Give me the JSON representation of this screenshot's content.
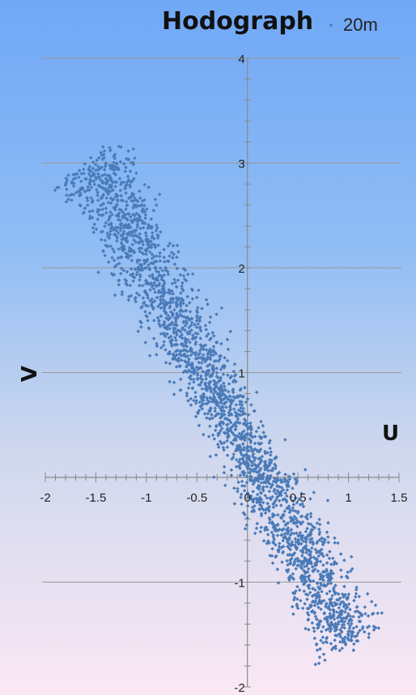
{
  "chart_data": {
    "type": "scatter",
    "title": "Hodograph",
    "xlabel": "U",
    "ylabel": "V",
    "xlim": [
      -2,
      1.5
    ],
    "ylim": [
      -2,
      4
    ],
    "x_ticks": [
      -2,
      -1.5,
      -1,
      -0.5,
      0,
      0.5,
      1,
      1.5
    ],
    "x_tick_labels": [
      "-2",
      "-1.5",
      "-1",
      "-0.5",
      "0",
      "0.5",
      "1",
      "1.5"
    ],
    "y_ticks": [
      -2,
      -1,
      1,
      2,
      3,
      4
    ],
    "y_tick_labels": [
      "-2",
      "-1",
      "1",
      "2",
      "3",
      "4"
    ],
    "grid": true,
    "legend_position": "top-right",
    "colors": {
      "background_top": "#70a8f6",
      "background_bottom": "#fbe8f4",
      "points": "#4a7ab8"
    },
    "series": [
      {
        "name": "20m",
        "trend": {
          "u": [
            -1.55,
            1.05
          ],
          "v": [
            3.0,
            -1.6
          ]
        },
        "points": [
          [
            -1.55,
            3.05
          ],
          [
            -1.45,
            3.1
          ],
          [
            -1.4,
            2.85
          ],
          [
            -1.3,
            2.7
          ],
          [
            -1.25,
            2.55
          ],
          [
            -1.15,
            2.45
          ],
          [
            -1.05,
            2.25
          ],
          [
            -1.0,
            2.0
          ],
          [
            -0.9,
            1.9
          ],
          [
            -0.8,
            1.65
          ],
          [
            -0.7,
            1.45
          ],
          [
            -0.6,
            1.25
          ],
          [
            -0.5,
            1.05
          ],
          [
            -0.4,
            0.85
          ],
          [
            -0.3,
            0.6
          ],
          [
            -0.2,
            0.45
          ],
          [
            -0.1,
            0.3
          ],
          [
            0.0,
            0.1
          ],
          [
            0.1,
            -0.1
          ],
          [
            0.2,
            -0.25
          ],
          [
            0.3,
            -0.45
          ],
          [
            0.4,
            -0.6
          ],
          [
            0.5,
            -0.8
          ],
          [
            0.6,
            -0.95
          ],
          [
            0.7,
            -1.1
          ],
          [
            0.8,
            -1.25
          ],
          [
            0.9,
            -1.4
          ],
          [
            1.0,
            -1.55
          ],
          [
            1.05,
            -1.65
          ]
        ]
      }
    ]
  }
}
